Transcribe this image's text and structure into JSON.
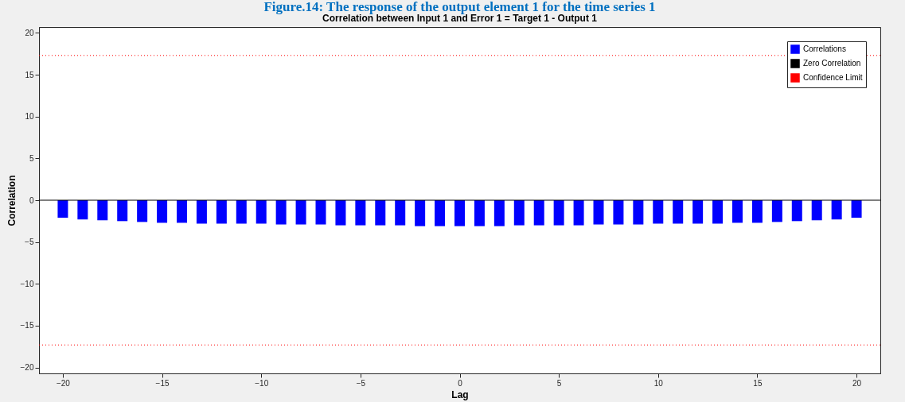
{
  "chart_data": {
    "type": "bar",
    "title": "Correlation between Input 1 and Error 1 = Target 1 - Output 1",
    "annotations": [
      "Figure.14: The response of the output element 1 for the time series 1"
    ],
    "xlabel": "Lag",
    "ylabel": "Correlation",
    "x": [
      -20,
      -19,
      -18,
      -17,
      -16,
      -15,
      -14,
      -13,
      -12,
      -11,
      -10,
      -9,
      -8,
      -7,
      -6,
      -5,
      -4,
      -3,
      -2,
      -1,
      0,
      1,
      2,
      3,
      4,
      5,
      6,
      7,
      8,
      9,
      10,
      11,
      12,
      13,
      14,
      15,
      16,
      17,
      18,
      19,
      20
    ],
    "series": [
      {
        "name": "Correlations",
        "color": "#0000ff",
        "values": [
          -2.1,
          -2.3,
          -2.4,
          -2.5,
          -2.6,
          -2.7,
          -2.7,
          -2.8,
          -2.8,
          -2.8,
          -2.8,
          -2.9,
          -2.9,
          -2.9,
          -3.0,
          -3.0,
          -3.0,
          -3.0,
          -3.1,
          -3.1,
          -3.1,
          -3.1,
          -3.1,
          -3.0,
          -3.0,
          -3.0,
          -3.0,
          -2.9,
          -2.9,
          -2.9,
          -2.8,
          -2.8,
          -2.8,
          -2.8,
          -2.7,
          -2.7,
          -2.6,
          -2.5,
          -2.4,
          -2.3,
          -2.1
        ]
      }
    ],
    "ref_lines": [
      {
        "axis": "y",
        "value": 0,
        "label": "Zero Correlation",
        "color": "#000000",
        "line_style": "solid"
      },
      {
        "axis": "y",
        "value": 17.3,
        "label": "Confidence Limit",
        "color": "#ff0000",
        "line_style": "dotted"
      },
      {
        "axis": "y",
        "value": -17.3,
        "color": "#ff0000",
        "line_style": "dotted"
      }
    ],
    "xlim": [
      -21,
      21
    ],
    "ylim": [
      -20.7,
      20.7
    ],
    "xticks": [
      -20,
      -15,
      -10,
      -5,
      0,
      5,
      10,
      15,
      20
    ],
    "yticks": [
      -20,
      -15,
      -10,
      -5,
      0,
      5,
      10,
      15,
      20
    ],
    "grid": false,
    "legend": "top right"
  }
}
